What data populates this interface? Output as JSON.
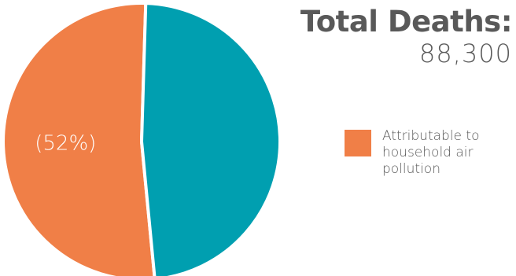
{
  "header": {
    "title": "Total Deaths:",
    "total_value": "88,300"
  },
  "colors": {
    "household": "#f07f47",
    "other": "#009fb0",
    "text": "#595959",
    "label_on_slice": "#ffffff"
  },
  "chart_data": {
    "type": "pie",
    "title": "Total Deaths:",
    "total": 88300,
    "slices": [
      {
        "name": "Attributable to household air pollution",
        "value": 52,
        "color": "#f07f47",
        "label": "(52%)"
      },
      {
        "value": 48,
        "color": "#009fb0",
        "label": ""
      }
    ],
    "legend": [
      {
        "label": "Attributable to household air pollution",
        "color": "#f07f47"
      }
    ],
    "legend_position": "right"
  }
}
